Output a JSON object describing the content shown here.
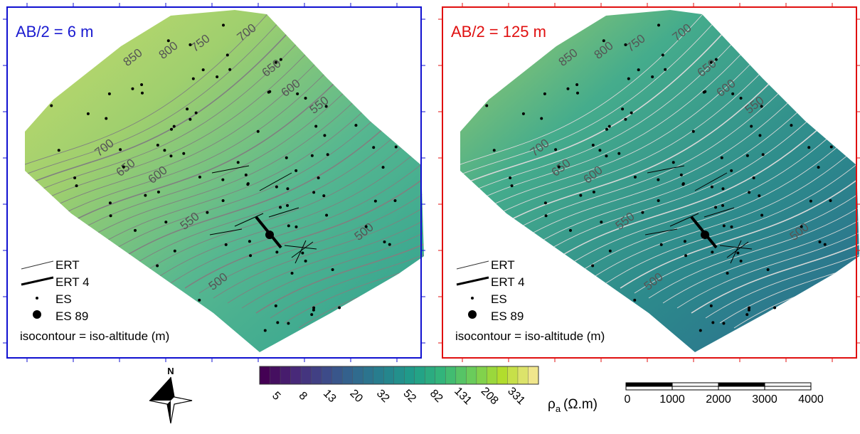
{
  "panels": [
    {
      "title": "AB/2 = 6 m",
      "contour_labels": [
        "850",
        "800",
        "750",
        "700",
        "650",
        "600",
        "550",
        "700",
        "650",
        "600",
        "550",
        "500",
        "500"
      ],
      "legend": [
        "ERT",
        "ERT 4",
        "ES",
        "ES 89",
        "isocontour = iso-altitude (m)"
      ]
    },
    {
      "title": "AB/2 = 125 m",
      "contour_labels": [
        "850",
        "800",
        "750",
        "700",
        "650",
        "600",
        "550",
        "700",
        "650",
        "600",
        "550",
        "500",
        "500"
      ],
      "legend": [
        "ERT",
        "ERT 4",
        "ES",
        "ES 89",
        "isocontour = iso-altitude (m)"
      ]
    }
  ],
  "colorbar": {
    "ticks": [
      "5",
      "8",
      "13",
      "20",
      "32",
      "52",
      "82",
      "131",
      "208",
      "331"
    ],
    "symbol": "ρ",
    "subscript": "a",
    "unit": "(Ω.m)"
  },
  "scale_bar": {
    "ticks": [
      "0",
      "1000",
      "2000",
      "3000",
      "4000"
    ]
  },
  "north": "N"
}
